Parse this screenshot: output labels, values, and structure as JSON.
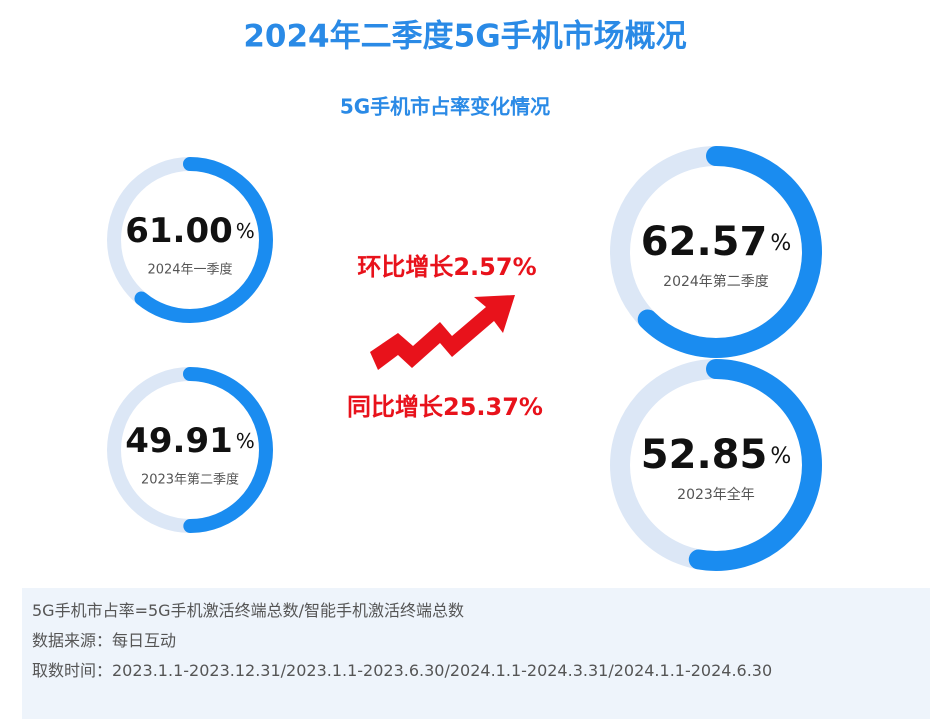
{
  "title": "2024年二季度5G手机市场概况",
  "subtitle": "5G手机市占率变化情况",
  "chart_data": [
    {
      "type": "donut",
      "values": [
        61.0
      ],
      "value_labels": [
        "61.00"
      ],
      "unit": "%",
      "label": "2024年一季度",
      "ylim": [
        0,
        100
      ],
      "color": "#1a8cf0",
      "track_color": "#dce7f6"
    },
    {
      "type": "donut",
      "values": [
        49.91
      ],
      "value_labels": [
        "49.91"
      ],
      "unit": "%",
      "label": "2023年第二季度",
      "ylim": [
        0,
        100
      ],
      "color": "#1a8cf0",
      "track_color": "#dce7f6"
    },
    {
      "type": "donut",
      "values": [
        62.57
      ],
      "value_labels": [
        "62.57"
      ],
      "unit": "%",
      "label": "2024年第二季度",
      "ylim": [
        0,
        100
      ],
      "color": "#1a8cf0",
      "track_color": "#dce7f6"
    },
    {
      "type": "donut",
      "values": [
        52.85
      ],
      "value_labels": [
        "52.85"
      ],
      "unit": "%",
      "label": "2023年全年",
      "ylim": [
        0,
        100
      ],
      "color": "#1a8cf0",
      "track_color": "#dce7f6"
    }
  ],
  "changes": [
    "环比增长2.57%",
    "同比增长25.37%"
  ],
  "notes": [
    "5G手机市占率=5G手机激活终端总数/智能手机激活终端总数",
    "数据来源：每日互动",
    "取数时间：2023.1.1-2023.12.31/2023.1.1-2023.6.30/2024.1.1-2024.3.31/2024.1.1-2024.6.30"
  ]
}
